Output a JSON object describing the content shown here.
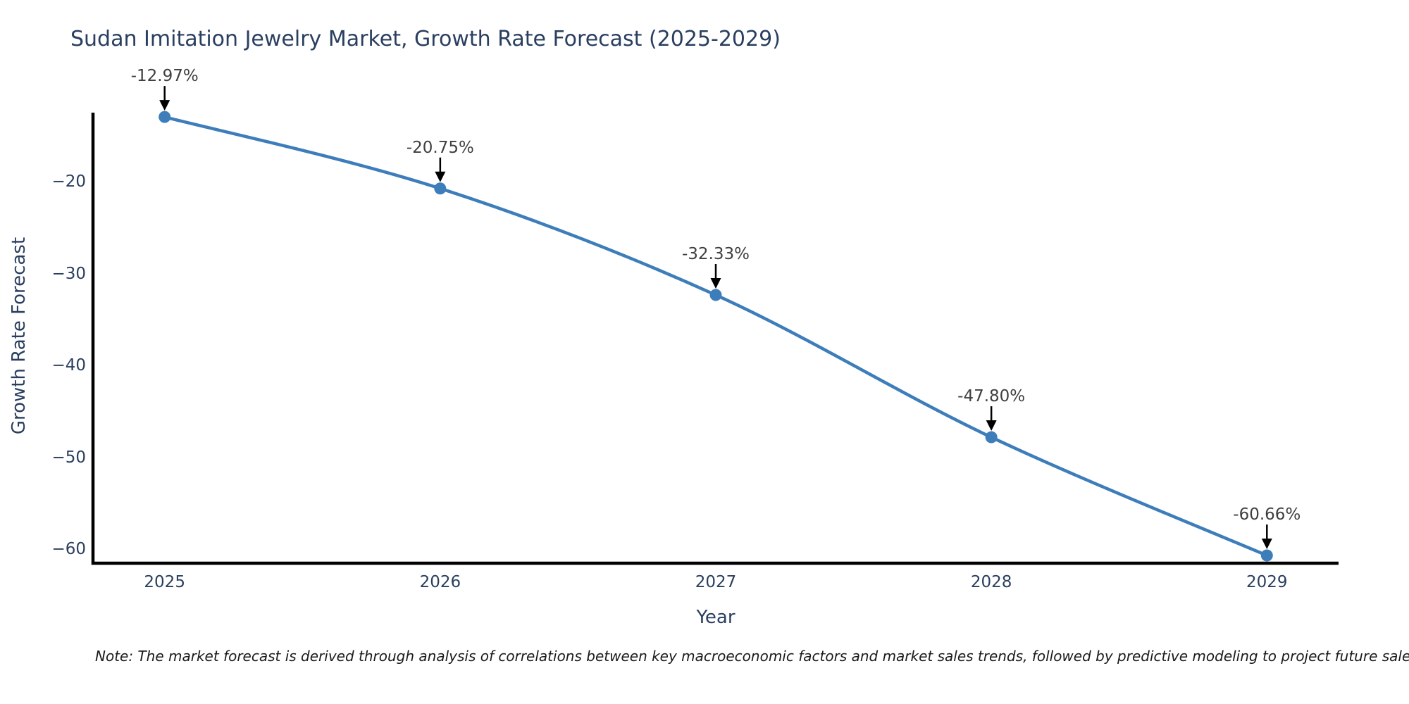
{
  "title": "Sudan Imitation Jewelry Market, Growth Rate Forecast (2025-2029)",
  "note": "Note: The market forecast is derived through analysis of correlations between key macroeconomic factors and market sales trends, followed by predictive modeling to project future sale",
  "chart_data": {
    "type": "line",
    "title": "Sudan Imitation Jewelry Market, Growth Rate Forecast (2025-2029)",
    "xlabel": "Year",
    "ylabel": "Growth Rate Forecast",
    "x": [
      2025,
      2026,
      2027,
      2028,
      2029
    ],
    "y": [
      -12.97,
      -20.75,
      -32.33,
      -47.8,
      -60.66
    ],
    "point_labels": [
      "-12.97%",
      "-20.75%",
      "-32.33%",
      "-47.80%",
      "-60.66%"
    ],
    "x_tick_labels": [
      "2025",
      "2026",
      "2027",
      "2028",
      "2029"
    ],
    "x_tick_values": [
      2025,
      2026,
      2027,
      2028,
      2029
    ],
    "y_tick_labels": [
      "−20",
      "−30",
      "−40",
      "−50",
      "−60"
    ],
    "y_tick_values": [
      -20,
      -30,
      -40,
      -50,
      -60
    ],
    "xlim": [
      2024.74,
      2029.26
    ],
    "ylim": [
      -61.5,
      -12.5
    ],
    "grid": false,
    "legend_position": "none",
    "line_shape": "spline",
    "colors": {
      "line": "#3d7dba",
      "marker": "#3d7dba",
      "axis": "#000000",
      "axis_text": "#2a3f5f",
      "annotation_text": "#3f3f3f",
      "annotation_arrow": "#000000",
      "background": "#ffffff"
    }
  }
}
